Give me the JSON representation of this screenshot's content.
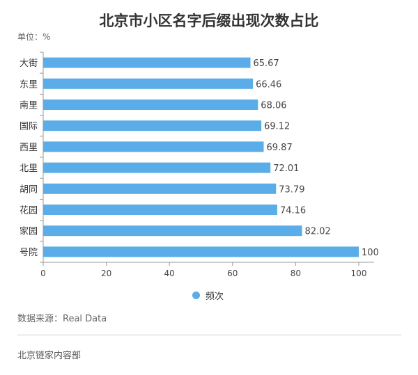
{
  "header": {
    "title": "北京市小区名字后缀出现次数占比",
    "unit": "单位：%"
  },
  "chart_data": {
    "type": "bar",
    "orientation": "horizontal",
    "categories": [
      "大街",
      "东里",
      "南里",
      "国际",
      "西里",
      "北里",
      "胡同",
      "花园",
      "家园",
      "号院"
    ],
    "series": [
      {
        "name": "频次",
        "values": [
          65.67,
          66.46,
          68.06,
          69.12,
          69.87,
          72.01,
          73.79,
          74.16,
          82.02,
          100
        ],
        "labels": [
          "65.67",
          "66.46",
          "68.06",
          "69.12",
          "69.87",
          "72.01",
          "73.79",
          "74.16",
          "82.02",
          "100"
        ]
      }
    ],
    "xlim": [
      0,
      100
    ],
    "xticks": [
      "0",
      "20",
      "40",
      "60",
      "80",
      "100"
    ],
    "bar_color": "#5aade8",
    "grid": false,
    "legend_position": "bottom"
  },
  "legend": {
    "label": "频次",
    "color": "#5aade8"
  },
  "source": "数据来源：Real Data",
  "footer": "北京链家内容部"
}
